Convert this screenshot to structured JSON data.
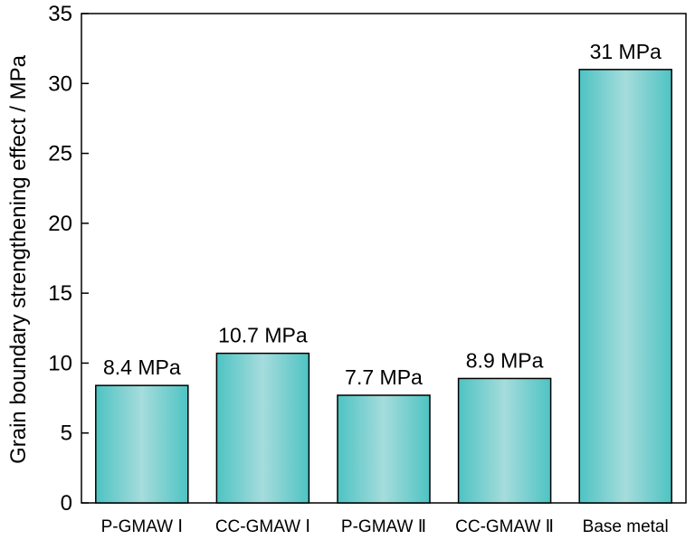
{
  "chart_data": {
    "type": "bar",
    "title": "",
    "xlabel": "",
    "ylabel": "Grain boundary strengthening effect / MPa",
    "ylim": [
      0,
      35
    ],
    "yticks": [
      0,
      5,
      10,
      15,
      20,
      25,
      30,
      35
    ],
    "grid": false,
    "categories": [
      "P-GMAW Ⅰ",
      "CC-GMAW Ⅰ",
      "P-GMAW Ⅱ",
      "CC-GMAW Ⅱ",
      "Base metal"
    ],
    "values": [
      8.4,
      10.7,
      7.7,
      8.9,
      31
    ],
    "data_labels": [
      "8.4 MPa",
      "10.7 MPa",
      "7.7 MPa",
      "8.9 MPa",
      "31 MPa"
    ],
    "bar_color": "#4ec3c3",
    "bar_highlight": "#a6dcdc"
  }
}
